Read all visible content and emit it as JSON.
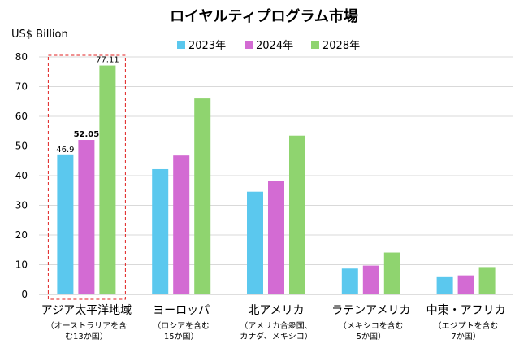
{
  "chart_data": {
    "type": "bar",
    "title": "ロイヤルティプログラム市場",
    "ylabel": "US$ Billion",
    "ylim": [
      0,
      80
    ],
    "yticks": [
      0,
      10,
      20,
      30,
      40,
      50,
      60,
      70,
      80
    ],
    "grid": true,
    "legend_position": "top",
    "categories": [
      {
        "label": "アジア太平洋地域",
        "sub": [
          "（オーストラリアを含",
          "む13か国）"
        ]
      },
      {
        "label": "ヨーロッパ",
        "sub": [
          "（ロシアを含む",
          "15か国）"
        ]
      },
      {
        "label": "北アメリカ",
        "sub": [
          "（アメリカ合衆国、",
          "カナダ、メキシコ）"
        ]
      },
      {
        "label": "ラテンアメリカ",
        "sub": [
          "（メキシコを含む",
          "5か国）"
        ]
      },
      {
        "label": "中東・アフリカ",
        "sub": [
          "（エジプトを含む",
          "7か国）"
        ]
      }
    ],
    "series": [
      {
        "name": "2023年",
        "color": "#5bc8ee",
        "values": [
          46.9,
          42.2,
          34.6,
          8.7,
          5.8
        ]
      },
      {
        "name": "2024年",
        "color": "#d36bd3",
        "values": [
          52.05,
          46.8,
          38.2,
          9.7,
          6.4
        ]
      },
      {
        "name": "2028年",
        "color": "#8fd46f",
        "values": [
          77.11,
          66.0,
          53.5,
          14.1,
          9.2
        ]
      }
    ],
    "data_labels": [
      {
        "category": 0,
        "series": 0,
        "text": "46.9",
        "bold": false
      },
      {
        "category": 0,
        "series": 1,
        "text": "52.05",
        "bold": true
      },
      {
        "category": 0,
        "series": 2,
        "text": "77.11",
        "bold": false
      }
    ],
    "highlight": {
      "category": 0,
      "color": "#e02020",
      "style": "dashed"
    }
  }
}
